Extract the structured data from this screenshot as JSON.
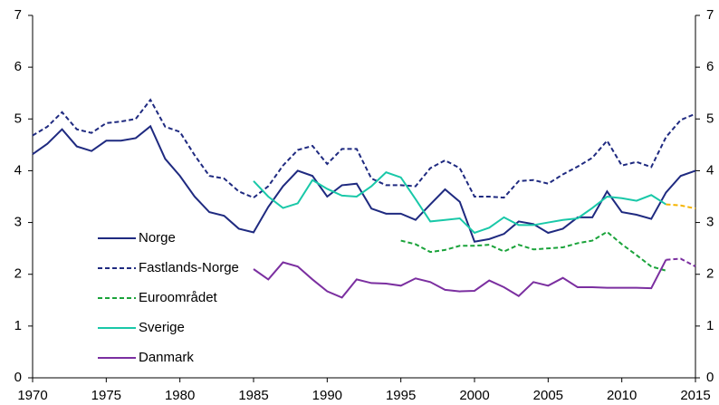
{
  "chart_data": {
    "type": "line",
    "x": [
      1970,
      1971,
      1972,
      1973,
      1974,
      1975,
      1976,
      1977,
      1978,
      1979,
      1980,
      1981,
      1982,
      1983,
      1984,
      1985,
      1986,
      1987,
      1988,
      1989,
      1990,
      1991,
      1992,
      1993,
      1994,
      1995,
      1996,
      1997,
      1998,
      1999,
      2000,
      2001,
      2002,
      2003,
      2004,
      2005,
      2006,
      2007,
      2008,
      2009,
      2010,
      2011,
      2012,
      2013,
      2014,
      2015
    ],
    "series": [
      {
        "name": "Norge",
        "color": "#1f2a80",
        "dashed": false,
        "values": [
          4.32,
          4.52,
          4.8,
          4.47,
          4.38,
          4.58,
          4.58,
          4.63,
          4.86,
          4.23,
          3.9,
          3.5,
          3.2,
          3.13,
          2.88,
          2.81,
          3.3,
          3.7,
          4.0,
          3.9,
          3.5,
          3.72,
          3.75,
          3.27,
          3.17,
          3.17,
          3.05,
          3.35,
          3.64,
          3.4,
          2.63,
          2.68,
          2.78,
          3.02,
          2.97,
          2.8,
          2.88,
          3.1,
          3.1,
          3.6,
          3.2,
          3.15,
          3.07,
          3.58,
          3.9,
          4.0
        ]
      },
      {
        "name": "Fastlands-Norge",
        "color": "#1f2a80",
        "dashed": true,
        "values": [
          4.68,
          4.85,
          5.13,
          4.8,
          4.73,
          4.92,
          4.95,
          5.0,
          5.37,
          4.85,
          4.75,
          4.3,
          3.9,
          3.85,
          3.6,
          3.48,
          3.7,
          4.1,
          4.4,
          4.48,
          4.13,
          4.42,
          4.42,
          3.85,
          3.72,
          3.72,
          3.7,
          4.05,
          4.2,
          4.05,
          3.5,
          3.5,
          3.48,
          3.8,
          3.82,
          3.75,
          3.93,
          4.08,
          4.25,
          4.58,
          4.1,
          4.17,
          4.07,
          4.65,
          4.98,
          5.1
        ]
      },
      {
        "name": "Euroområdet",
        "color": "#1aa33a",
        "dashed": true,
        "values": [
          null,
          null,
          null,
          null,
          null,
          null,
          null,
          null,
          null,
          null,
          null,
          null,
          null,
          null,
          null,
          null,
          null,
          null,
          null,
          null,
          null,
          null,
          null,
          null,
          null,
          2.65,
          2.58,
          2.43,
          2.47,
          2.55,
          2.55,
          2.57,
          2.44,
          2.57,
          2.48,
          2.5,
          2.52,
          2.6,
          2.65,
          2.82,
          2.58,
          2.37,
          2.15,
          2.07,
          null,
          null
        ]
      },
      {
        "name": "Sverige",
        "color": "#19c8a8",
        "dashed": false,
        "values": [
          null,
          null,
          null,
          null,
          null,
          null,
          null,
          null,
          null,
          null,
          null,
          null,
          null,
          null,
          null,
          3.8,
          3.5,
          3.28,
          3.37,
          3.82,
          3.65,
          3.52,
          3.5,
          3.7,
          3.97,
          3.87,
          3.45,
          3.02,
          3.05,
          3.08,
          2.8,
          2.9,
          3.1,
          2.95,
          2.95,
          3.0,
          3.05,
          3.08,
          3.28,
          3.5,
          3.47,
          3.42,
          3.53,
          3.35,
          null,
          null
        ]
      },
      {
        "name": "Danmark",
        "color": "#7b2fa0",
        "dashed": false,
        "values": [
          null,
          null,
          null,
          null,
          null,
          null,
          null,
          null,
          null,
          null,
          null,
          null,
          null,
          null,
          null,
          2.1,
          1.9,
          2.23,
          2.15,
          1.9,
          1.67,
          1.55,
          1.9,
          1.83,
          1.82,
          1.78,
          1.92,
          1.85,
          1.7,
          1.67,
          1.68,
          1.88,
          1.75,
          1.58,
          1.85,
          1.78,
          1.93,
          1.75,
          1.75,
          1.74,
          1.74,
          1.74,
          1.73,
          2.28,
          null,
          null
        ]
      },
      {
        "color": "#f5b400",
        "dashed": true,
        "values": [
          null,
          null,
          null,
          null,
          null,
          null,
          null,
          null,
          null,
          null,
          null,
          null,
          null,
          null,
          null,
          null,
          null,
          null,
          null,
          null,
          null,
          null,
          null,
          null,
          null,
          null,
          null,
          null,
          null,
          null,
          null,
          null,
          null,
          null,
          null,
          null,
          null,
          null,
          null,
          null,
          null,
          null,
          null,
          3.35,
          3.33,
          3.27
        ]
      },
      {
        "color": "#7b2fa0",
        "dashed": true,
        "values": [
          null,
          null,
          null,
          null,
          null,
          null,
          null,
          null,
          null,
          null,
          null,
          null,
          null,
          null,
          null,
          null,
          null,
          null,
          null,
          null,
          null,
          null,
          null,
          null,
          null,
          null,
          null,
          null,
          null,
          null,
          null,
          null,
          null,
          null,
          null,
          null,
          null,
          null,
          null,
          null,
          null,
          null,
          null,
          2.28,
          2.3,
          2.15
        ]
      }
    ],
    "xlim": [
      1970,
      2015
    ],
    "xticks": [
      1970,
      1975,
      1980,
      1985,
      1990,
      1995,
      2000,
      2005,
      2010,
      2015
    ],
    "ylim": [
      0,
      7
    ],
    "yticks": [
      0,
      1,
      2,
      3,
      4,
      5,
      6,
      7
    ],
    "y2lim": [
      0,
      7
    ],
    "y2ticks": [
      0,
      1,
      2,
      3,
      4,
      5,
      6,
      7
    ],
    "grid": false,
    "legend": "left"
  }
}
